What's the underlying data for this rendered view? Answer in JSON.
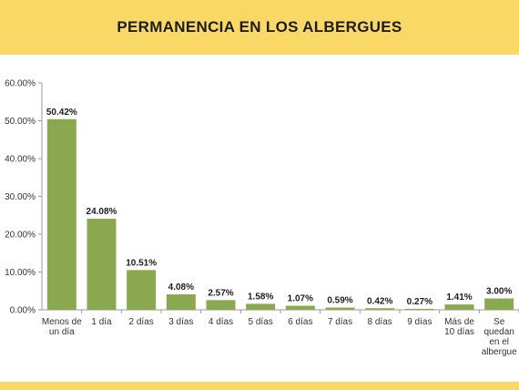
{
  "header": {
    "title": "PERMANENCIA EN LOS ALBERGUES"
  },
  "colors": {
    "banner": "#fad865",
    "bar": "#8aa84f",
    "axis": "#999999"
  },
  "chart_data": {
    "type": "bar",
    "title": "PERMANENCIA EN LOS ALBERGUES",
    "xlabel": "",
    "ylabel": "",
    "ylim": [
      0,
      60
    ],
    "grid": false,
    "legend": "none",
    "y_ticks": [
      "0.00%",
      "10.00%",
      "20.00%",
      "30.00%",
      "40.00%",
      "50.00%",
      "60.00%"
    ],
    "categories": [
      [
        "Menos de",
        "un día"
      ],
      [
        "1 día"
      ],
      [
        "2 días"
      ],
      [
        "3 días"
      ],
      [
        "4 días"
      ],
      [
        "5 días"
      ],
      [
        "6 días"
      ],
      [
        "7 días"
      ],
      [
        "8 días"
      ],
      [
        "9 días"
      ],
      [
        "Más de",
        "10 días"
      ],
      [
        "Se",
        "quedan",
        "en el",
        "albergue"
      ]
    ],
    "values": [
      50.42,
      24.08,
      10.51,
      4.08,
      2.57,
      1.58,
      1.07,
      0.59,
      0.42,
      0.27,
      1.41,
      3.0
    ],
    "value_labels": [
      "50.42%",
      "24.08%",
      "10.51%",
      "4.08%",
      "2.57%",
      "1.58%",
      "1.07%",
      "0.59%",
      "0.42%",
      "0.27%",
      "1.41%",
      "3.00%"
    ]
  }
}
